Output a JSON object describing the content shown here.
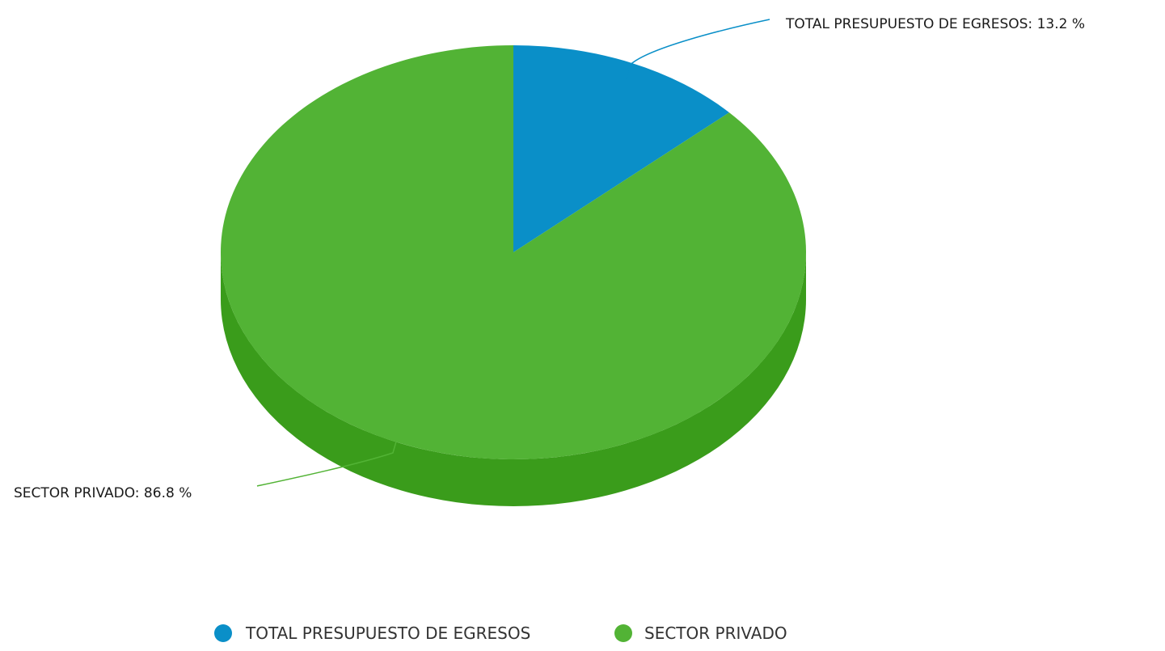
{
  "chart_data": {
    "type": "pie",
    "style": "3d",
    "unit": "%",
    "slices": [
      {
        "name": "TOTAL PRESUPUESTO DE EGRESOS",
        "value": 13.2,
        "color": "#0a8fc8",
        "side_color": "#0678a8",
        "label": "TOTAL PRESUPUESTO DE EGRESOS: 13.2 %"
      },
      {
        "name": "SECTOR PRIVADO",
        "value": 86.8,
        "color": "#52b335",
        "side_color": "#3a9c1b",
        "label": "SECTOR PRIVADO: 86.8 %"
      }
    ],
    "legend": {
      "placement": "bottom-center",
      "items": [
        "TOTAL PRESUPUESTO DE EGRESOS",
        "SECTOR PRIVADO"
      ]
    }
  }
}
